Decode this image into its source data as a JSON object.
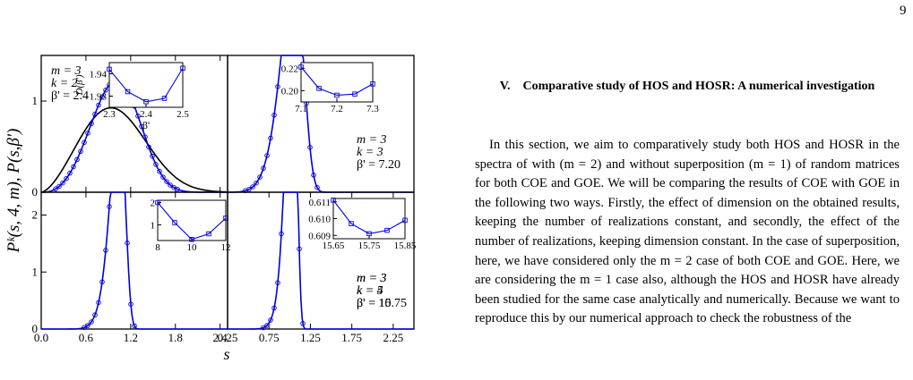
{
  "page": {
    "number": "9"
  },
  "section": {
    "title": "V. Comparative study of HOS and HOSR: A numerical investigation"
  },
  "paragraph": "In this section, we aim to comparatively study both HOS and HOSR in the spectra of with (m = 2) and without superposition (m = 1) of random matrices for both COE and GOE. We will be comparing the results of COE with GOE in the following two ways. Firstly, the effect of dimension on the obtained results, keeping the number of realizations constant, and secondly, the effect of the number of realizations, keeping dimension constant. In the case of superposition, here, we have considered only the m = 2 case of both COE and GOE. Here, we are considering the m = 1 case also, although the HOS and HOSR have already been studied for the same case analytically and numerically. Because we want to reproduce this by our numerical approach to check the robustness of the",
  "figure": {
    "ylabel": "Pᵏ(s, 4, m), P(s,β')",
    "xlabel": "s",
    "line_color": "#0000dd",
    "theory_color": "#000000",
    "panels": [
      {
        "id": "k2",
        "m_label": "m = 3",
        "k_label": "k = 2",
        "beta_label": "β' = 2.4",
        "xlim": [
          0,
          2.5
        ],
        "ylim": [
          0,
          1.5
        ],
        "x_ticks": [
          "0.0",
          "0.6",
          "1.2",
          "1.8",
          "2.4"
        ],
        "y_ticks": [
          "0",
          "1"
        ],
        "curve": {
          "type": "brody",
          "beta": 2.4,
          "hist_beta": 2.55
        },
        "theory": {
          "beta": 1.6
        },
        "inset": {
          "ylabel": "D(β')",
          "xlabel": "β'",
          "xlim": [
            2.3,
            2.5
          ],
          "ylim": [
            1.925,
            1.945
          ],
          "x_ticks": [
            "2.3",
            "2.4",
            "2.5"
          ],
          "y_ticks": [
            "1.93",
            "1.94"
          ],
          "x": [
            2.3,
            2.35,
            2.4,
            2.45,
            2.5
          ],
          "y": [
            1.942,
            1.932,
            1.9275,
            1.929,
            1.9425
          ]
        }
      },
      {
        "id": "k3",
        "m_label": "m = 3",
        "k_label": "k = 3",
        "beta_label": "β' = 7.20",
        "xlim": [
          0.25,
          2.5
        ],
        "ylim": [
          0,
          1.8
        ],
        "x_ticks": [],
        "y_ticks": [],
        "curve": {
          "type": "brody",
          "beta": 7.2
        },
        "inset": {
          "ylabel": "",
          "xlabel": "",
          "xlim": [
            7.1,
            7.3
          ],
          "ylim": [
            0.19,
            0.225
          ],
          "x_ticks": [
            "7.1",
            "7.2",
            "7.3"
          ],
          "y_ticks": [
            "0.20",
            "0.22"
          ],
          "x": [
            7.1,
            7.15,
            7.2,
            7.25,
            7.3
          ],
          "y": [
            0.221,
            0.202,
            0.196,
            0.197,
            0.206
          ]
        }
      },
      {
        "id": "k4",
        "m_label": "m = 3",
        "k_label": "k = 4",
        "beta_label": "β' = 10",
        "xlim": [
          0,
          2.5
        ],
        "ylim": [
          0,
          2.4
        ],
        "x_ticks": [
          "0.0",
          "0.6",
          "1.2",
          "1.8",
          "2.4"
        ],
        "y_ticks": [
          "0",
          "1",
          "2"
        ],
        "curve": {
          "type": "brody",
          "beta": 10
        },
        "inset": {
          "ylabel": "",
          "xlabel": "",
          "xlim": [
            8,
            12
          ],
          "ylim": [
            0.3,
            2.1
          ],
          "x_ticks": [
            "8",
            "10",
            "12"
          ],
          "y_ticks": [
            "1",
            "2"
          ],
          "x": [
            8,
            9,
            10,
            11,
            12
          ],
          "y": [
            2.0,
            1.1,
            0.35,
            0.6,
            1.3
          ]
        }
      },
      {
        "id": "k5",
        "m_label": "m = 3",
        "k_label": "k = 5",
        "beta_label": "β' = 15.75",
        "xlim": [
          0.25,
          2.5
        ],
        "ylim": [
          0,
          2.4
        ],
        "x_ticks": [
          "0.25",
          "0.75",
          "1.25",
          "1.75",
          "2.25"
        ],
        "y_ticks": [],
        "curve": {
          "type": "brody",
          "beta": 15.75
        },
        "inset": {
          "ylabel": "",
          "xlabel": "",
          "xlim": [
            15.65,
            15.85
          ],
          "ylim": [
            0.6088,
            0.6112
          ],
          "x_ticks": [
            "15.65",
            "15.75",
            "15.85"
          ],
          "y_ticks": [
            "0.609",
            "0.610",
            "0.611"
          ],
          "x": [
            15.65,
            15.7,
            15.75,
            15.8,
            15.85
          ],
          "y": [
            0.6111,
            0.6097,
            0.6091,
            0.6093,
            0.6099
          ]
        }
      }
    ]
  }
}
